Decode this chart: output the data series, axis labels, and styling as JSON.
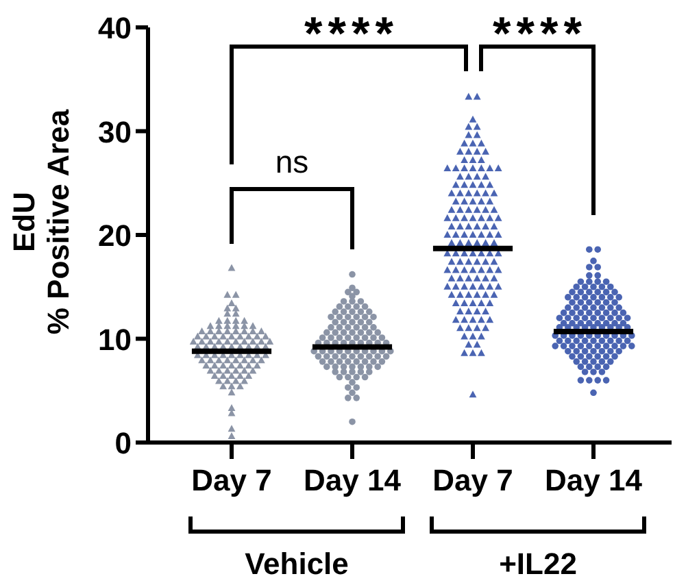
{
  "chart_data": [
    {
      "type": "scatter",
      "ylabel": "EdU\n% Positive Area",
      "xlabel": "Vehicle",
      "categories": [
        "Day 7",
        "Day 14"
      ],
      "ylim": [
        0,
        40
      ],
      "yticks": [
        0,
        10,
        20,
        30,
        40
      ],
      "annotations": [
        "****",
        "ns"
      ],
      "ref_lines": [
        {
          "axis": "y",
          "value": 8.8,
          "color": "#000000"
        },
        {
          "axis": "y",
          "value": 9.2,
          "color": "#000000"
        }
      ],
      "series": [
        {
          "marker": "triangle",
          "color": "#8b94a6",
          "x": [
            "Day 7",
            "Day 7",
            "Day 7",
            "Day 7",
            "Day 7",
            "Day 7",
            "Day 7",
            "Day 7",
            "Day 7",
            "Day 7",
            "Day 7",
            "Day 7",
            "Day 7",
            "Day 7",
            "Day 7",
            "Day 7",
            "Day 7",
            "Day 7",
            "Day 7",
            "Day 7",
            "Day 7",
            "Day 7",
            "Day 7",
            "Day 7",
            "Day 7",
            "Day 7",
            "Day 7",
            "Day 7",
            "Day 7",
            "Day 7",
            "Day 7",
            "Day 7",
            "Day 7",
            "Day 7",
            "Day 7",
            "Day 7",
            "Day 7",
            "Day 7",
            "Day 7",
            "Day 7",
            "Day 7",
            "Day 7",
            "Day 7",
            "Day 7",
            "Day 7",
            "Day 7",
            "Day 7",
            "Day 7",
            "Day 7",
            "Day 7",
            "Day 7",
            "Day 7",
            "Day 7",
            "Day 7",
            "Day 7",
            "Day 7",
            "Day 7",
            "Day 7",
            "Day 7",
            "Day 7",
            "Day 7",
            "Day 7",
            "Day 7",
            "Day 7",
            "Day 7",
            "Day 7",
            "Day 7",
            "Day 7",
            "Day 7",
            "Day 7",
            "Day 7",
            "Day 7",
            "Day 7",
            "Day 7",
            "Day 7",
            "Day 7",
            "Day 7",
            "Day 7",
            "Day 7",
            "Day 7",
            "Day 7",
            "Day 7",
            "Day 7",
            "Day 7",
            "Day 7",
            "Day 7",
            "Day 7",
            "Day 7",
            "Day 7",
            "Day 7",
            "Day 7",
            "Day 7",
            "Day 7",
            "Day 7",
            "Day 7",
            "Day 7",
            "Day 7",
            "Day 7",
            "Day 7",
            "Day 7",
            "Day 7"
          ],
          "values": [
            16.8,
            14.2,
            14.2,
            13.4,
            12.9,
            12.9,
            12.4,
            12.4,
            11.7,
            11.7,
            11.7,
            11.7,
            11.2,
            11.2,
            11.2,
            11.2,
            11.2,
            11.2,
            10.7,
            10.7,
            10.7,
            10.7,
            10.7,
            10.7,
            10.7,
            10.7,
            10.2,
            10.2,
            10.2,
            10.2,
            10.2,
            10.2,
            10.2,
            10.2,
            10.2,
            9.7,
            9.7,
            9.7,
            9.7,
            9.7,
            9.7,
            9.7,
            9.7,
            9.7,
            9.7,
            9.2,
            9.2,
            9.2,
            9.2,
            9.2,
            9.2,
            9.2,
            9.2,
            9.2,
            8.4,
            8.4,
            8.4,
            8.4,
            8.4,
            8.4,
            8.4,
            8.4,
            8.4,
            7.9,
            7.9,
            7.9,
            7.9,
            7.9,
            7.9,
            7.9,
            7.9,
            7.4,
            7.4,
            7.4,
            7.4,
            7.4,
            7.4,
            7.4,
            6.9,
            6.9,
            6.9,
            6.9,
            6.9,
            6.9,
            6.4,
            6.4,
            6.4,
            6.4,
            6.4,
            5.9,
            5.9,
            5.9,
            5.9,
            5.4,
            5.4,
            5.4,
            4.8,
            3.3,
            2.8,
            1.3,
            0.6
          ]
        },
        {
          "marker": "circle",
          "color": "#8b94a6",
          "x": [
            "Day 14",
            "Day 14",
            "Day 14",
            "Day 14",
            "Day 14",
            "Day 14",
            "Day 14",
            "Day 14",
            "Day 14",
            "Day 14",
            "Day 14",
            "Day 14",
            "Day 14",
            "Day 14",
            "Day 14",
            "Day 14",
            "Day 14",
            "Day 14",
            "Day 14",
            "Day 14",
            "Day 14",
            "Day 14",
            "Day 14",
            "Day 14",
            "Day 14",
            "Day 14",
            "Day 14",
            "Day 14",
            "Day 14",
            "Day 14",
            "Day 14",
            "Day 14",
            "Day 14",
            "Day 14",
            "Day 14",
            "Day 14",
            "Day 14",
            "Day 14",
            "Day 14",
            "Day 14",
            "Day 14",
            "Day 14",
            "Day 14",
            "Day 14",
            "Day 14",
            "Day 14",
            "Day 14",
            "Day 14",
            "Day 14",
            "Day 14",
            "Day 14",
            "Day 14",
            "Day 14",
            "Day 14",
            "Day 14",
            "Day 14",
            "Day 14",
            "Day 14",
            "Day 14",
            "Day 14",
            "Day 14",
            "Day 14",
            "Day 14",
            "Day 14",
            "Day 14",
            "Day 14",
            "Day 14",
            "Day 14",
            "Day 14",
            "Day 14",
            "Day 14",
            "Day 14",
            "Day 14",
            "Day 14",
            "Day 14",
            "Day 14",
            "Day 14",
            "Day 14",
            "Day 14",
            "Day 14",
            "Day 14",
            "Day 14",
            "Day 14",
            "Day 14",
            "Day 14",
            "Day 14",
            "Day 14",
            "Day 14",
            "Day 14",
            "Day 14",
            "Day 14",
            "Day 14",
            "Day 14",
            "Day 14",
            "Day 14",
            "Day 14",
            "Day 14",
            "Day 14",
            "Day 14",
            "Day 14",
            "Day 14",
            "Day 14",
            "Day 14",
            "Day 14",
            "Day 14",
            "Day 14",
            "Day 14",
            "Day 14"
          ],
          "values": [
            16.2,
            14.9,
            14.5,
            14.5,
            14.1,
            13.6,
            13.6,
            13.6,
            13.1,
            13.1,
            13.1,
            13.1,
            12.6,
            12.6,
            12.6,
            12.6,
            12.6,
            12.1,
            12.1,
            12.1,
            12.1,
            12.1,
            12.1,
            11.6,
            11.6,
            11.6,
            11.6,
            11.6,
            11.1,
            11.1,
            11.1,
            11.1,
            11.1,
            11.1,
            10.6,
            10.6,
            10.6,
            10.6,
            10.6,
            10.6,
            10.6,
            10.1,
            10.1,
            10.1,
            10.1,
            10.1,
            10.1,
            10.1,
            10.1,
            9.6,
            9.6,
            9.6,
            9.6,
            9.6,
            9.6,
            9.6,
            9.6,
            9.6,
            8.8,
            8.8,
            8.8,
            8.8,
            8.8,
            8.8,
            8.8,
            8.8,
            8.8,
            8.8,
            8.3,
            8.3,
            8.3,
            8.3,
            8.3,
            8.3,
            8.3,
            8.3,
            8.3,
            7.8,
            7.8,
            7.8,
            7.8,
            7.8,
            7.8,
            7.8,
            7.8,
            7.3,
            7.3,
            7.3,
            7.3,
            7.3,
            7.3,
            7.3,
            6.8,
            6.8,
            6.8,
            6.8,
            6.8,
            6.3,
            6.3,
            6.3,
            6.3,
            5.8,
            5.3,
            5.3,
            4.8,
            4.3,
            4.3,
            2
          ]
        }
      ]
    },
    {
      "type": "scatter",
      "xlabel": "+IL22",
      "categories": [
        "Day 7",
        "Day 14"
      ],
      "ylim": [
        0,
        40
      ],
      "tick_labels": "x",
      "annotations": [
        "****"
      ],
      "ref_lines": [
        {
          "axis": "y",
          "value": 18.7,
          "color": "#000000"
        },
        {
          "axis": "y",
          "value": 10.7,
          "color": "#000000"
        }
      ],
      "series": [
        {
          "marker": "triangle",
          "color": "#4a64b2",
          "x": [
            "Day 7",
            "Day 7",
            "Day 7",
            "Day 7",
            "Day 7",
            "Day 7",
            "Day 7",
            "Day 7",
            "Day 7",
            "Day 7",
            "Day 7",
            "Day 7",
            "Day 7",
            "Day 7",
            "Day 7",
            "Day 7",
            "Day 7",
            "Day 7",
            "Day 7",
            "Day 7",
            "Day 7",
            "Day 7",
            "Day 7",
            "Day 7",
            "Day 7",
            "Day 7",
            "Day 7",
            "Day 7",
            "Day 7",
            "Day 7",
            "Day 7",
            "Day 7",
            "Day 7",
            "Day 7",
            "Day 7",
            "Day 7",
            "Day 7",
            "Day 7",
            "Day 7",
            "Day 7",
            "Day 7",
            "Day 7",
            "Day 7",
            "Day 7",
            "Day 7",
            "Day 7",
            "Day 7",
            "Day 7",
            "Day 7",
            "Day 7",
            "Day 7",
            "Day 7",
            "Day 7",
            "Day 7",
            "Day 7",
            "Day 7",
            "Day 7",
            "Day 7",
            "Day 7",
            "Day 7",
            "Day 7",
            "Day 7",
            "Day 7",
            "Day 7",
            "Day 7",
            "Day 7",
            "Day 7",
            "Day 7",
            "Day 7",
            "Day 7",
            "Day 7",
            "Day 7",
            "Day 7",
            "Day 7",
            "Day 7",
            "Day 7",
            "Day 7",
            "Day 7",
            "Day 7",
            "Day 7",
            "Day 7",
            "Day 7",
            "Day 7",
            "Day 7",
            "Day 7",
            "Day 7",
            "Day 7",
            "Day 7",
            "Day 7",
            "Day 7",
            "Day 7",
            "Day 7",
            "Day 7",
            "Day 7",
            "Day 7",
            "Day 7",
            "Day 7",
            "Day 7",
            "Day 7",
            "Day 7",
            "Day 7",
            "Day 7",
            "Day 7",
            "Day 7",
            "Day 7",
            "Day 7",
            "Day 7",
            "Day 7",
            "Day 7",
            "Day 7",
            "Day 7",
            "Day 7",
            "Day 7",
            "Day 7",
            "Day 7",
            "Day 7",
            "Day 7",
            "Day 7",
            "Day 7",
            "Day 7",
            "Day 7",
            "Day 7",
            "Day 7",
            "Day 7",
            "Day 7",
            "Day 7",
            "Day 7",
            "Day 7",
            "Day 7",
            "Day 7",
            "Day 7",
            "Day 7",
            "Day 7",
            "Day 7",
            "Day 7",
            "Day 7",
            "Day 7",
            "Day 7",
            "Day 7",
            "Day 7",
            "Day 7",
            "Day 7"
          ],
          "values": [
            33.3,
            33.3,
            31.1,
            30.4,
            30.4,
            29.6,
            29.6,
            28.8,
            28.8,
            28.8,
            28,
            28,
            28,
            28,
            27.2,
            27.2,
            27.2,
            26.4,
            26.4,
            26.4,
            26.4,
            26.4,
            26.4,
            26.4,
            25.6,
            25.6,
            25.6,
            25.6,
            24.8,
            24.8,
            24.8,
            24.8,
            24.8,
            24,
            24,
            24,
            24,
            24,
            24,
            23.2,
            23.2,
            23.2,
            23.2,
            23.2,
            22.4,
            22.4,
            22.4,
            22.4,
            22.4,
            22.4,
            21.6,
            21.6,
            21.6,
            21.6,
            21.6,
            21.6,
            21.6,
            20.8,
            20.8,
            20.8,
            20.8,
            20.8,
            20.8,
            20,
            20,
            20,
            20,
            20,
            20,
            20,
            19.2,
            19.2,
            19.2,
            19.2,
            19.2,
            19.2,
            18.2,
            18.2,
            18.2,
            18.2,
            18.2,
            18.2,
            18.2,
            17.4,
            17.4,
            17.4,
            17.4,
            17.4,
            17.4,
            16.6,
            16.6,
            16.6,
            16.6,
            16.6,
            16.6,
            16.6,
            15.8,
            15.8,
            15.8,
            15.8,
            15.8,
            15.8,
            15,
            15,
            15,
            15,
            15,
            15,
            15,
            14.2,
            14.2,
            14.2,
            14.2,
            14.2,
            14.2,
            13.4,
            13.4,
            13.4,
            13.4,
            13.4,
            12.6,
            12.6,
            12.6,
            12.6,
            11.8,
            11.8,
            11.8,
            11.8,
            11.8,
            11,
            11,
            11,
            11,
            10.2,
            10.2,
            10.2,
            9.4,
            9.4,
            8.6,
            8.6,
            8.6,
            4.6
          ]
        },
        {
          "marker": "circle",
          "color": "#4a64b2",
          "x": [
            "Day 14",
            "Day 14",
            "Day 14",
            "Day 14",
            "Day 14",
            "Day 14",
            "Day 14",
            "Day 14",
            "Day 14",
            "Day 14",
            "Day 14",
            "Day 14",
            "Day 14",
            "Day 14",
            "Day 14",
            "Day 14",
            "Day 14",
            "Day 14",
            "Day 14",
            "Day 14",
            "Day 14",
            "Day 14",
            "Day 14",
            "Day 14",
            "Day 14",
            "Day 14",
            "Day 14",
            "Day 14",
            "Day 14",
            "Day 14",
            "Day 14",
            "Day 14",
            "Day 14",
            "Day 14",
            "Day 14",
            "Day 14",
            "Day 14",
            "Day 14",
            "Day 14",
            "Day 14",
            "Day 14",
            "Day 14",
            "Day 14",
            "Day 14",
            "Day 14",
            "Day 14",
            "Day 14",
            "Day 14",
            "Day 14",
            "Day 14",
            "Day 14",
            "Day 14",
            "Day 14",
            "Day 14",
            "Day 14",
            "Day 14",
            "Day 14",
            "Day 14",
            "Day 14",
            "Day 14",
            "Day 14",
            "Day 14",
            "Day 14",
            "Day 14",
            "Day 14",
            "Day 14",
            "Day 14",
            "Day 14",
            "Day 14",
            "Day 14",
            "Day 14",
            "Day 14",
            "Day 14",
            "Day 14",
            "Day 14",
            "Day 14",
            "Day 14",
            "Day 14",
            "Day 14",
            "Day 14",
            "Day 14",
            "Day 14",
            "Day 14",
            "Day 14",
            "Day 14",
            "Day 14",
            "Day 14",
            "Day 14",
            "Day 14",
            "Day 14",
            "Day 14",
            "Day 14",
            "Day 14",
            "Day 14",
            "Day 14",
            "Day 14",
            "Day 14",
            "Day 14",
            "Day 14",
            "Day 14",
            "Day 14",
            "Day 14",
            "Day 14",
            "Day 14",
            "Day 14",
            "Day 14",
            "Day 14",
            "Day 14",
            "Day 14",
            "Day 14",
            "Day 14",
            "Day 14",
            "Day 14",
            "Day 14",
            "Day 14",
            "Day 14",
            "Day 14",
            "Day 14",
            "Day 14",
            "Day 14",
            "Day 14",
            "Day 14",
            "Day 14",
            "Day 14",
            "Day 14",
            "Day 14",
            "Day 14",
            "Day 14",
            "Day 14",
            "Day 14",
            "Day 14",
            "Day 14",
            "Day 14",
            "Day 14",
            "Day 14"
          ],
          "values": [
            18.6,
            18.6,
            17.5,
            16.9,
            16.9,
            16.1,
            16.1,
            15.5,
            15.5,
            15.5,
            15.5,
            15,
            15,
            15,
            15,
            15,
            14.5,
            14.5,
            14.5,
            14.5,
            14.5,
            14.5,
            14,
            14,
            14,
            14,
            14,
            14,
            14,
            13.5,
            13.5,
            13.5,
            13.5,
            13.5,
            13.5,
            13,
            13,
            13,
            13,
            13,
            13,
            13,
            12.5,
            12.5,
            12.5,
            12.5,
            12.5,
            12.5,
            12.5,
            12.5,
            12,
            12,
            12,
            12,
            12,
            12,
            12,
            12,
            12,
            11.5,
            11.5,
            11.5,
            11.5,
            11.5,
            11.5,
            11.5,
            11.5,
            11.1,
            11.1,
            11.1,
            11.1,
            11.1,
            11.1,
            11.1,
            11.1,
            11.1,
            10.3,
            10.3,
            10.3,
            10.3,
            10.3,
            10.3,
            10.3,
            10.3,
            10.3,
            10.3,
            9.8,
            9.8,
            9.8,
            9.8,
            9.8,
            9.8,
            9.8,
            9.8,
            9.8,
            9.3,
            9.3,
            9.3,
            9.3,
            9.3,
            9.3,
            9.3,
            9.3,
            9.3,
            9.3,
            8.8,
            8.8,
            8.8,
            8.8,
            8.8,
            8.8,
            8.8,
            8.3,
            8.3,
            8.3,
            8.3,
            8.3,
            8.3,
            7.8,
            7.8,
            7.8,
            7.8,
            7.8,
            7.3,
            7.3,
            7.3,
            7.3,
            6.8,
            6.8,
            6.8,
            6,
            6,
            6,
            6,
            4.8
          ]
        }
      ]
    }
  ]
}
